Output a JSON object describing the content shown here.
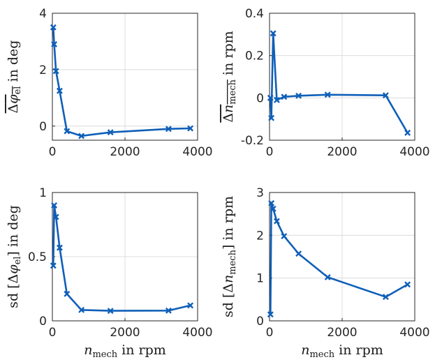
{
  "chart_data": [
    {
      "type": "line",
      "ylabel": "Δφ_el in deg (overlined)",
      "ylabel_parts": [
        {
          "t": "Δ",
          "over": true
        },
        {
          "t": "φ",
          "it": true,
          "over": true
        },
        {
          "t": "el",
          "sub": true,
          "over": true
        },
        {
          "t": " in deg"
        }
      ],
      "xlabel": "",
      "xlim": [
        0,
        4000
      ],
      "ylim": [
        -0.5,
        4
      ],
      "xticks": [
        0,
        2000,
        4000
      ],
      "yticks": [
        0,
        2,
        4
      ],
      "grid": true,
      "color": "#0f5fb8",
      "marker": "x",
      "series": [
        {
          "x": [
            25,
            50,
            100,
            200,
            400,
            800,
            1600,
            3200,
            3800
          ],
          "values": [
            3.5,
            2.9,
            1.95,
            1.25,
            -0.18,
            -0.35,
            -0.22,
            -0.1,
            -0.08
          ]
        }
      ]
    },
    {
      "type": "line",
      "ylabel": "Δn_mech in rpm (overlined)",
      "ylabel_parts": [
        {
          "t": "Δ",
          "over": true
        },
        {
          "t": "n",
          "it": true,
          "over": true
        },
        {
          "t": "mech",
          "sub": true,
          "over": true
        },
        {
          "t": " in rpm"
        }
      ],
      "xlabel": "",
      "xlim": [
        0,
        4000
      ],
      "ylim": [
        -0.2,
        0.4
      ],
      "xticks": [
        0,
        2000,
        4000
      ],
      "yticks": [
        -0.2,
        0,
        0.2,
        0.4
      ],
      "grid": true,
      "color": "#0f5fb8",
      "marker": "x",
      "series": [
        {
          "x": [
            25,
            50,
            100,
            200,
            400,
            800,
            1600,
            3200,
            3800
          ],
          "values": [
            0.0,
            -0.095,
            0.305,
            -0.01,
            0.005,
            0.01,
            0.015,
            0.012,
            -0.165
          ]
        }
      ]
    },
    {
      "type": "line",
      "ylabel": "sd[Δφ_el] in deg",
      "ylabel_parts": [
        {
          "t": "sd [Δ"
        },
        {
          "t": "φ",
          "it": true
        },
        {
          "t": "el",
          "sub": true
        },
        {
          "t": "] in deg"
        }
      ],
      "xlabel": "n_mech in rpm",
      "xlim": [
        0,
        4000
      ],
      "ylim": [
        0,
        1
      ],
      "xticks": [
        0,
        2000,
        4000
      ],
      "yticks": [
        0,
        0.5,
        1
      ],
      "grid": true,
      "color": "#0f5fb8",
      "marker": "x",
      "series": [
        {
          "x": [
            25,
            50,
            100,
            200,
            400,
            800,
            1600,
            3200,
            3800
          ],
          "values": [
            0.43,
            0.9,
            0.81,
            0.57,
            0.21,
            0.085,
            0.078,
            0.08,
            0.12
          ]
        }
      ]
    },
    {
      "type": "line",
      "ylabel": "sd[Δn_mech] in rpm",
      "ylabel_parts": [
        {
          "t": "sd [Δ"
        },
        {
          "t": "n",
          "it": true
        },
        {
          "t": "mech",
          "sub": true
        },
        {
          "t": "] in rpm"
        }
      ],
      "xlabel": "n_mech in rpm",
      "xlim": [
        0,
        4000
      ],
      "ylim": [
        0,
        3
      ],
      "xticks": [
        0,
        2000,
        4000
      ],
      "yticks": [
        0,
        1,
        2,
        3
      ],
      "grid": true,
      "color": "#0f5fb8",
      "marker": "x",
      "series": [
        {
          "x": [
            25,
            50,
            100,
            200,
            400,
            800,
            1600,
            3200,
            3800
          ],
          "values": [
            0.15,
            2.75,
            2.62,
            2.33,
            1.98,
            1.57,
            1.02,
            0.56,
            0.85
          ]
        }
      ]
    }
  ],
  "xlabel_parts": [
    {
      "t": "n",
      "it": true
    },
    {
      "t": "mech",
      "sub": true
    },
    {
      "t": " in rpm"
    }
  ]
}
